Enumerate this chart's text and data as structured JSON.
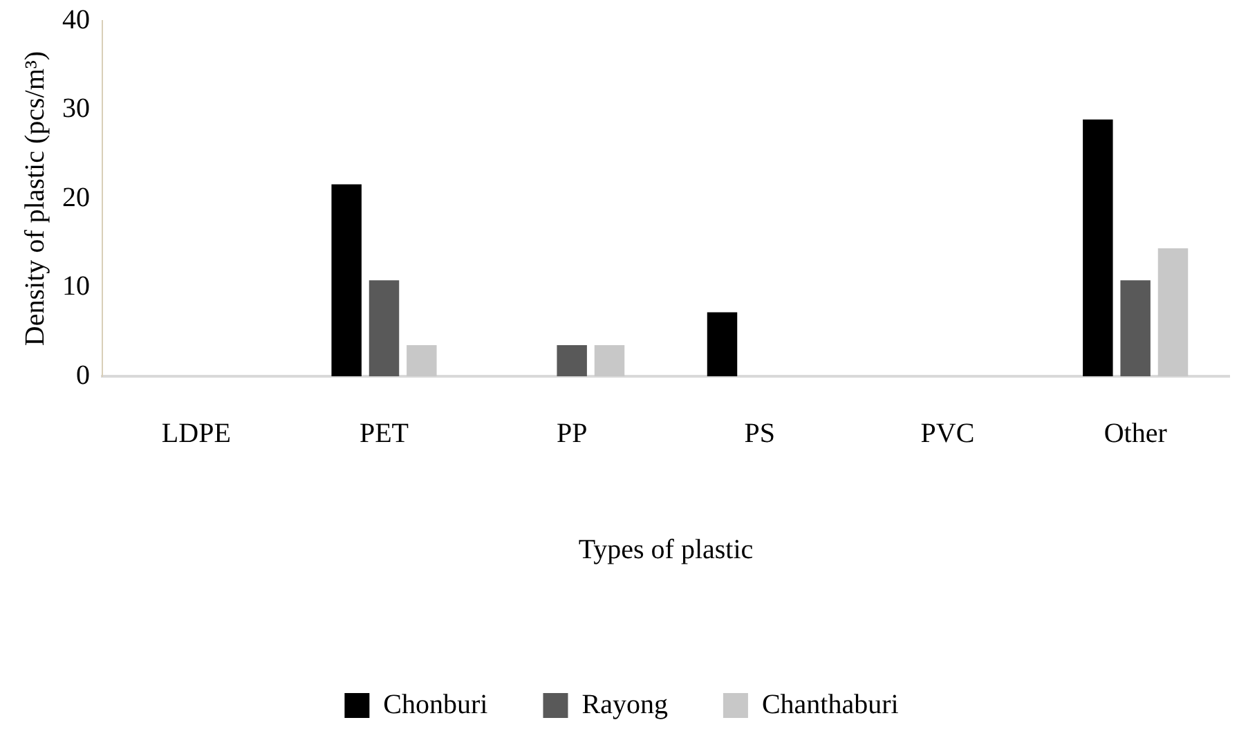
{
  "chart_data": {
    "type": "bar",
    "xlabel": "Types of plastic",
    "ylabel": "Density of plastic (pcs/m³)",
    "categories": [
      "LDPE",
      "PET",
      "PP",
      "PS",
      "PVC",
      "Other"
    ],
    "series": [
      {
        "name": "Chonburi",
        "color": "#000000",
        "values": [
          0,
          21.6,
          0,
          7.2,
          0,
          28.9
        ]
      },
      {
        "name": "Rayong",
        "color": "#595959",
        "values": [
          0,
          10.8,
          3.5,
          0,
          0,
          10.8
        ]
      },
      {
        "name": "Chanthaburi",
        "color": "#c8c8c8",
        "values": [
          0,
          3.5,
          3.5,
          0,
          0,
          14.4
        ]
      }
    ],
    "ylim": [
      0,
      40
    ],
    "yticks": [
      0,
      10,
      20,
      30,
      40
    ],
    "grid": false,
    "legend": "bottom"
  }
}
